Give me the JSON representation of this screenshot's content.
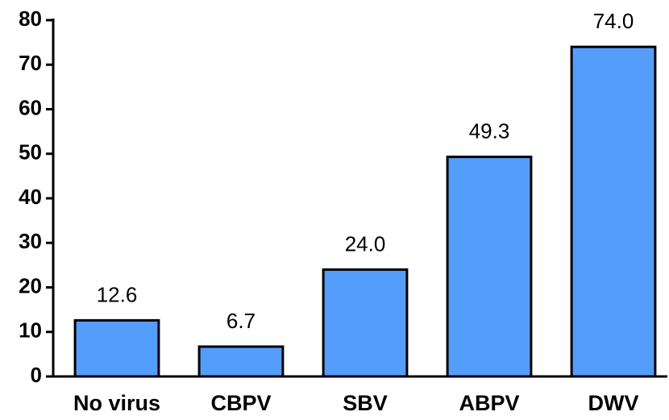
{
  "chart_data": {
    "type": "bar",
    "categories": [
      "No virus",
      "CBPV",
      "SBV",
      "ABPV",
      "DWV"
    ],
    "values": [
      12.6,
      6.7,
      24.0,
      49.3,
      74.0
    ],
    "value_labels": [
      "12.6",
      "6.7",
      "24.0",
      "49.3",
      "74.0"
    ],
    "color": "#559dfb",
    "ylim": [
      0,
      80
    ],
    "yticks": [
      0,
      10,
      20,
      30,
      40,
      50,
      60,
      70,
      80
    ],
    "grid": false
  }
}
